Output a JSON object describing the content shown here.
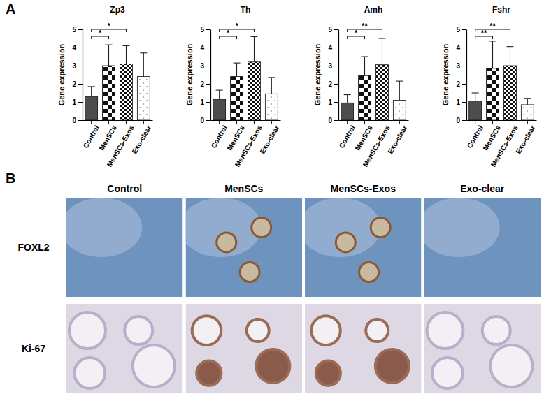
{
  "chart_data": [
    {
      "type": "bar",
      "title": "Zp3",
      "y_label": "Gene expression",
      "categories": [
        "Control",
        "MenSCs",
        "MenSCs-Exos",
        "Exo-clear"
      ],
      "values": [
        1.3,
        3.0,
        3.1,
        2.4
      ],
      "errors": [
        0.55,
        1.15,
        1.0,
        1.3
      ],
      "colors": [
        "#4d4d4d",
        "#ffffff",
        "#ffffff",
        "#ffffff"
      ],
      "ylim": [
        0,
        5
      ],
      "yticks": [
        0,
        1,
        2,
        3,
        4,
        5
      ],
      "grid": false,
      "significance": [
        {
          "pair": [
            "Control",
            "MenSCs"
          ],
          "label": "*"
        },
        {
          "pair": [
            "Control",
            "MenSCs-Exos"
          ],
          "label": "*"
        }
      ]
    },
    {
      "type": "bar",
      "title": "Th",
      "y_label": "Gene expression",
      "categories": [
        "Control",
        "MenSCs",
        "MenSCs-Exos",
        "Exo-clear"
      ],
      "values": [
        1.15,
        2.4,
        3.2,
        1.45
      ],
      "errors": [
        0.5,
        0.75,
        1.4,
        0.9
      ],
      "colors": [
        "#4d4d4d",
        "#ffffff",
        "#ffffff",
        "#ffffff"
      ],
      "ylim": [
        0,
        5
      ],
      "yticks": [
        0,
        1,
        2,
        3,
        4,
        5
      ],
      "grid": false,
      "significance": [
        {
          "pair": [
            "Control",
            "MenSCs"
          ],
          "label": "*"
        },
        {
          "pair": [
            "Control",
            "MenSCs-Exos"
          ],
          "label": "*"
        }
      ]
    },
    {
      "type": "bar",
      "title": "Amh",
      "y_label": "Gene expression",
      "categories": [
        "Control",
        "MenSCs",
        "MenSCs-Exos",
        "Exo-clear"
      ],
      "values": [
        0.95,
        2.45,
        3.05,
        1.1
      ],
      "errors": [
        0.45,
        1.05,
        1.45,
        1.05
      ],
      "colors": [
        "#4d4d4d",
        "#ffffff",
        "#ffffff",
        "#ffffff"
      ],
      "ylim": [
        0,
        5
      ],
      "yticks": [
        0,
        1,
        2,
        3,
        4,
        5
      ],
      "grid": false,
      "significance": [
        {
          "pair": [
            "Control",
            "MenSCs"
          ],
          "label": "*"
        },
        {
          "pair": [
            "Control",
            "MenSCs-Exos"
          ],
          "label": "**"
        }
      ]
    },
    {
      "type": "bar",
      "title": "Fshr",
      "y_label": "Gene expression",
      "categories": [
        "Control",
        "MenSCs",
        "MenSCs-Exos",
        "Exo-clear"
      ],
      "values": [
        1.05,
        2.85,
        3.0,
        0.85
      ],
      "errors": [
        0.45,
        1.5,
        1.05,
        0.35
      ],
      "colors": [
        "#4d4d4d",
        "#ffffff",
        "#ffffff",
        "#ffffff"
      ],
      "ylim": [
        0,
        5
      ],
      "yticks": [
        0,
        1,
        2,
        3,
        4,
        5
      ],
      "grid": false,
      "significance": [
        {
          "pair": [
            "Control",
            "MenSCs"
          ],
          "label": "**"
        },
        {
          "pair": [
            "Control",
            "MenSCs-Exos"
          ],
          "label": "**"
        }
      ]
    }
  ],
  "figure": {
    "panel_labels": [
      "A",
      "B"
    ],
    "image_grid": {
      "columns": [
        "Control",
        "MenSCs",
        "MenSCs-Exos",
        "Exo-clear"
      ],
      "rows": [
        "FOXL2",
        "Ki-67"
      ]
    }
  }
}
